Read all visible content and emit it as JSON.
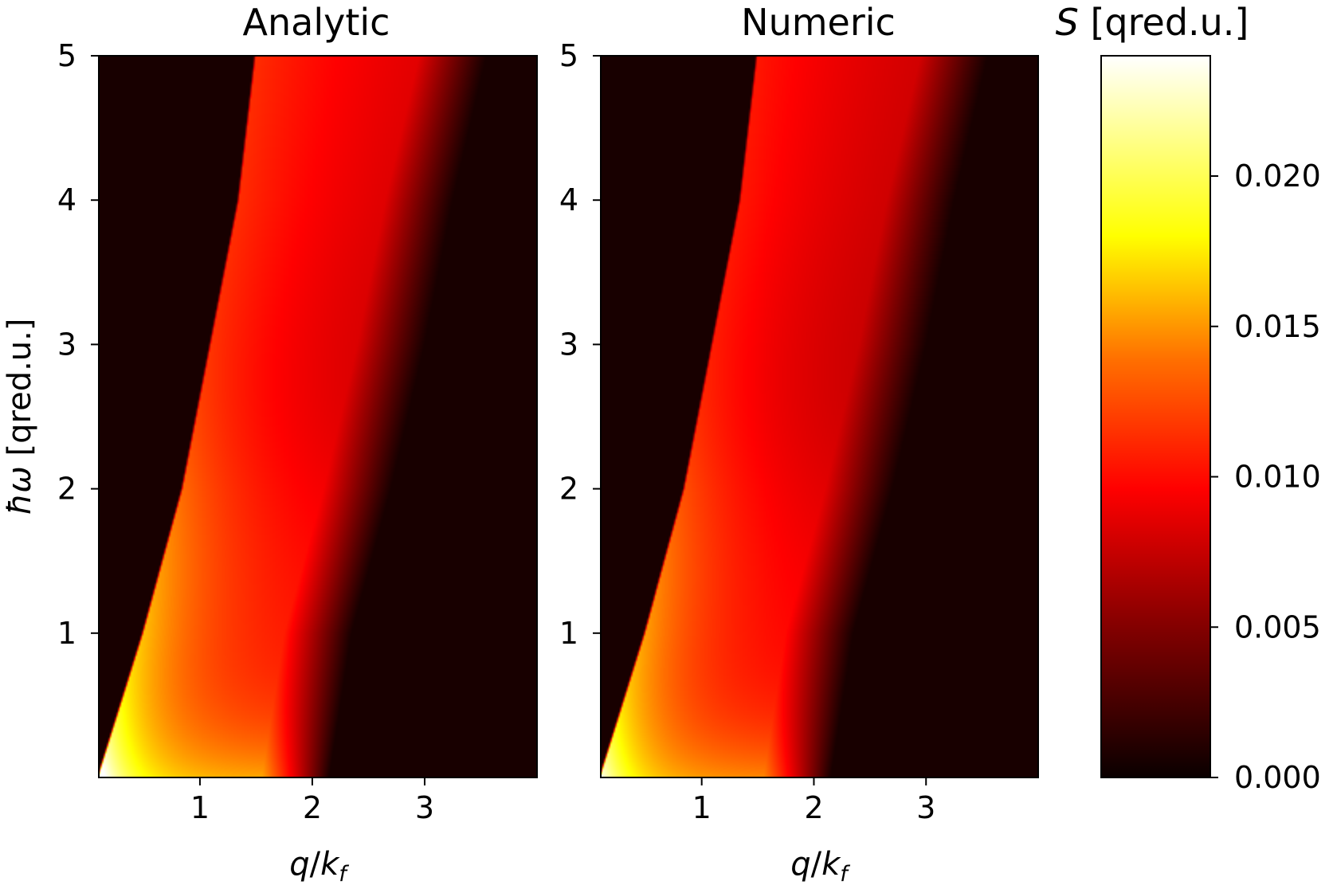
{
  "figure": {
    "colormap_name": "hot",
    "colormap_stops": [
      "#0a0000",
      "#b00000",
      "#ff0000",
      "#ff8c00",
      "#ffff00",
      "#ffffff"
    ],
    "text_color": "#000000"
  },
  "chart_data": [
    {
      "type": "heatmap",
      "title": "Analytic",
      "xlabel": {
        "var_q": "q",
        "slash": "/",
        "var_k": "k",
        "sub": "f"
      },
      "ylabel": {
        "symbol": "ħω",
        "unit": " [qred.u.]"
      },
      "xlim": [
        0.1,
        4.0
      ],
      "ylim": [
        0.0,
        5.0
      ],
      "xticks": [
        1,
        2,
        3
      ],
      "xticklabels": [
        "1",
        "2",
        "3"
      ],
      "yticks": [
        1,
        2,
        3,
        4,
        5
      ],
      "yticklabels": [
        "1",
        "2",
        "3",
        "4",
        "5"
      ],
      "z_description": "dynamic structure factor S; non-zero only in band between q²/2+q and q²/2−q style particle-hole continuum",
      "band_edges_samples": [
        {
          "omega": 0.0,
          "q_low": 0.1,
          "q_high": 2.0
        },
        {
          "omega": 1.0,
          "q_low": 0.5,
          "q_high": 2.2
        },
        {
          "omega": 2.0,
          "q_low": 0.85,
          "q_high": 2.55
        },
        {
          "omega": 3.0,
          "q_low": 1.1,
          "q_high": 2.85
        },
        {
          "omega": 4.0,
          "q_low": 1.35,
          "q_high": 3.1
        },
        {
          "omega": 5.0,
          "q_low": 1.5,
          "q_high": 3.4
        }
      ],
      "peak_value": 0.024,
      "peak_location": {
        "q": 0.2,
        "omega": 0.2
      }
    },
    {
      "type": "heatmap",
      "title": "Numeric",
      "xlabel": {
        "var_q": "q",
        "slash": "/",
        "var_k": "k",
        "sub": "f"
      },
      "xlim": [
        0.1,
        4.0
      ],
      "ylim": [
        0.0,
        5.0
      ],
      "xticks": [
        1,
        2,
        3
      ],
      "xticklabels": [
        "1",
        "2",
        "3"
      ],
      "yticks": [
        1,
        2,
        3,
        4,
        5
      ],
      "yticklabels": [
        "1",
        "2",
        "3",
        "4",
        "5"
      ],
      "z_description": "dynamic structure factor S computed numerically; same band structure, slightly lower peak",
      "band_edges_samples": [
        {
          "omega": 0.0,
          "q_low": 0.1,
          "q_high": 2.0
        },
        {
          "omega": 1.0,
          "q_low": 0.5,
          "q_high": 2.2
        },
        {
          "omega": 2.0,
          "q_low": 0.85,
          "q_high": 2.55
        },
        {
          "omega": 3.0,
          "q_low": 1.1,
          "q_high": 2.85
        },
        {
          "omega": 4.0,
          "q_low": 1.35,
          "q_high": 3.1
        },
        {
          "omega": 5.0,
          "q_low": 1.5,
          "q_high": 3.4
        }
      ],
      "peak_value": 0.022,
      "peak_location": {
        "q": 0.2,
        "omega": 0.2
      }
    },
    {
      "type": "colorbar",
      "label": {
        "symbol": "S",
        "unit": " [qred.u.]"
      },
      "range": [
        0.0,
        0.024
      ],
      "ticks": [
        0.0,
        0.005,
        0.01,
        0.015,
        0.02
      ],
      "ticklabels": [
        "0.000",
        "0.005",
        "0.010",
        "0.015",
        "0.020"
      ]
    }
  ]
}
